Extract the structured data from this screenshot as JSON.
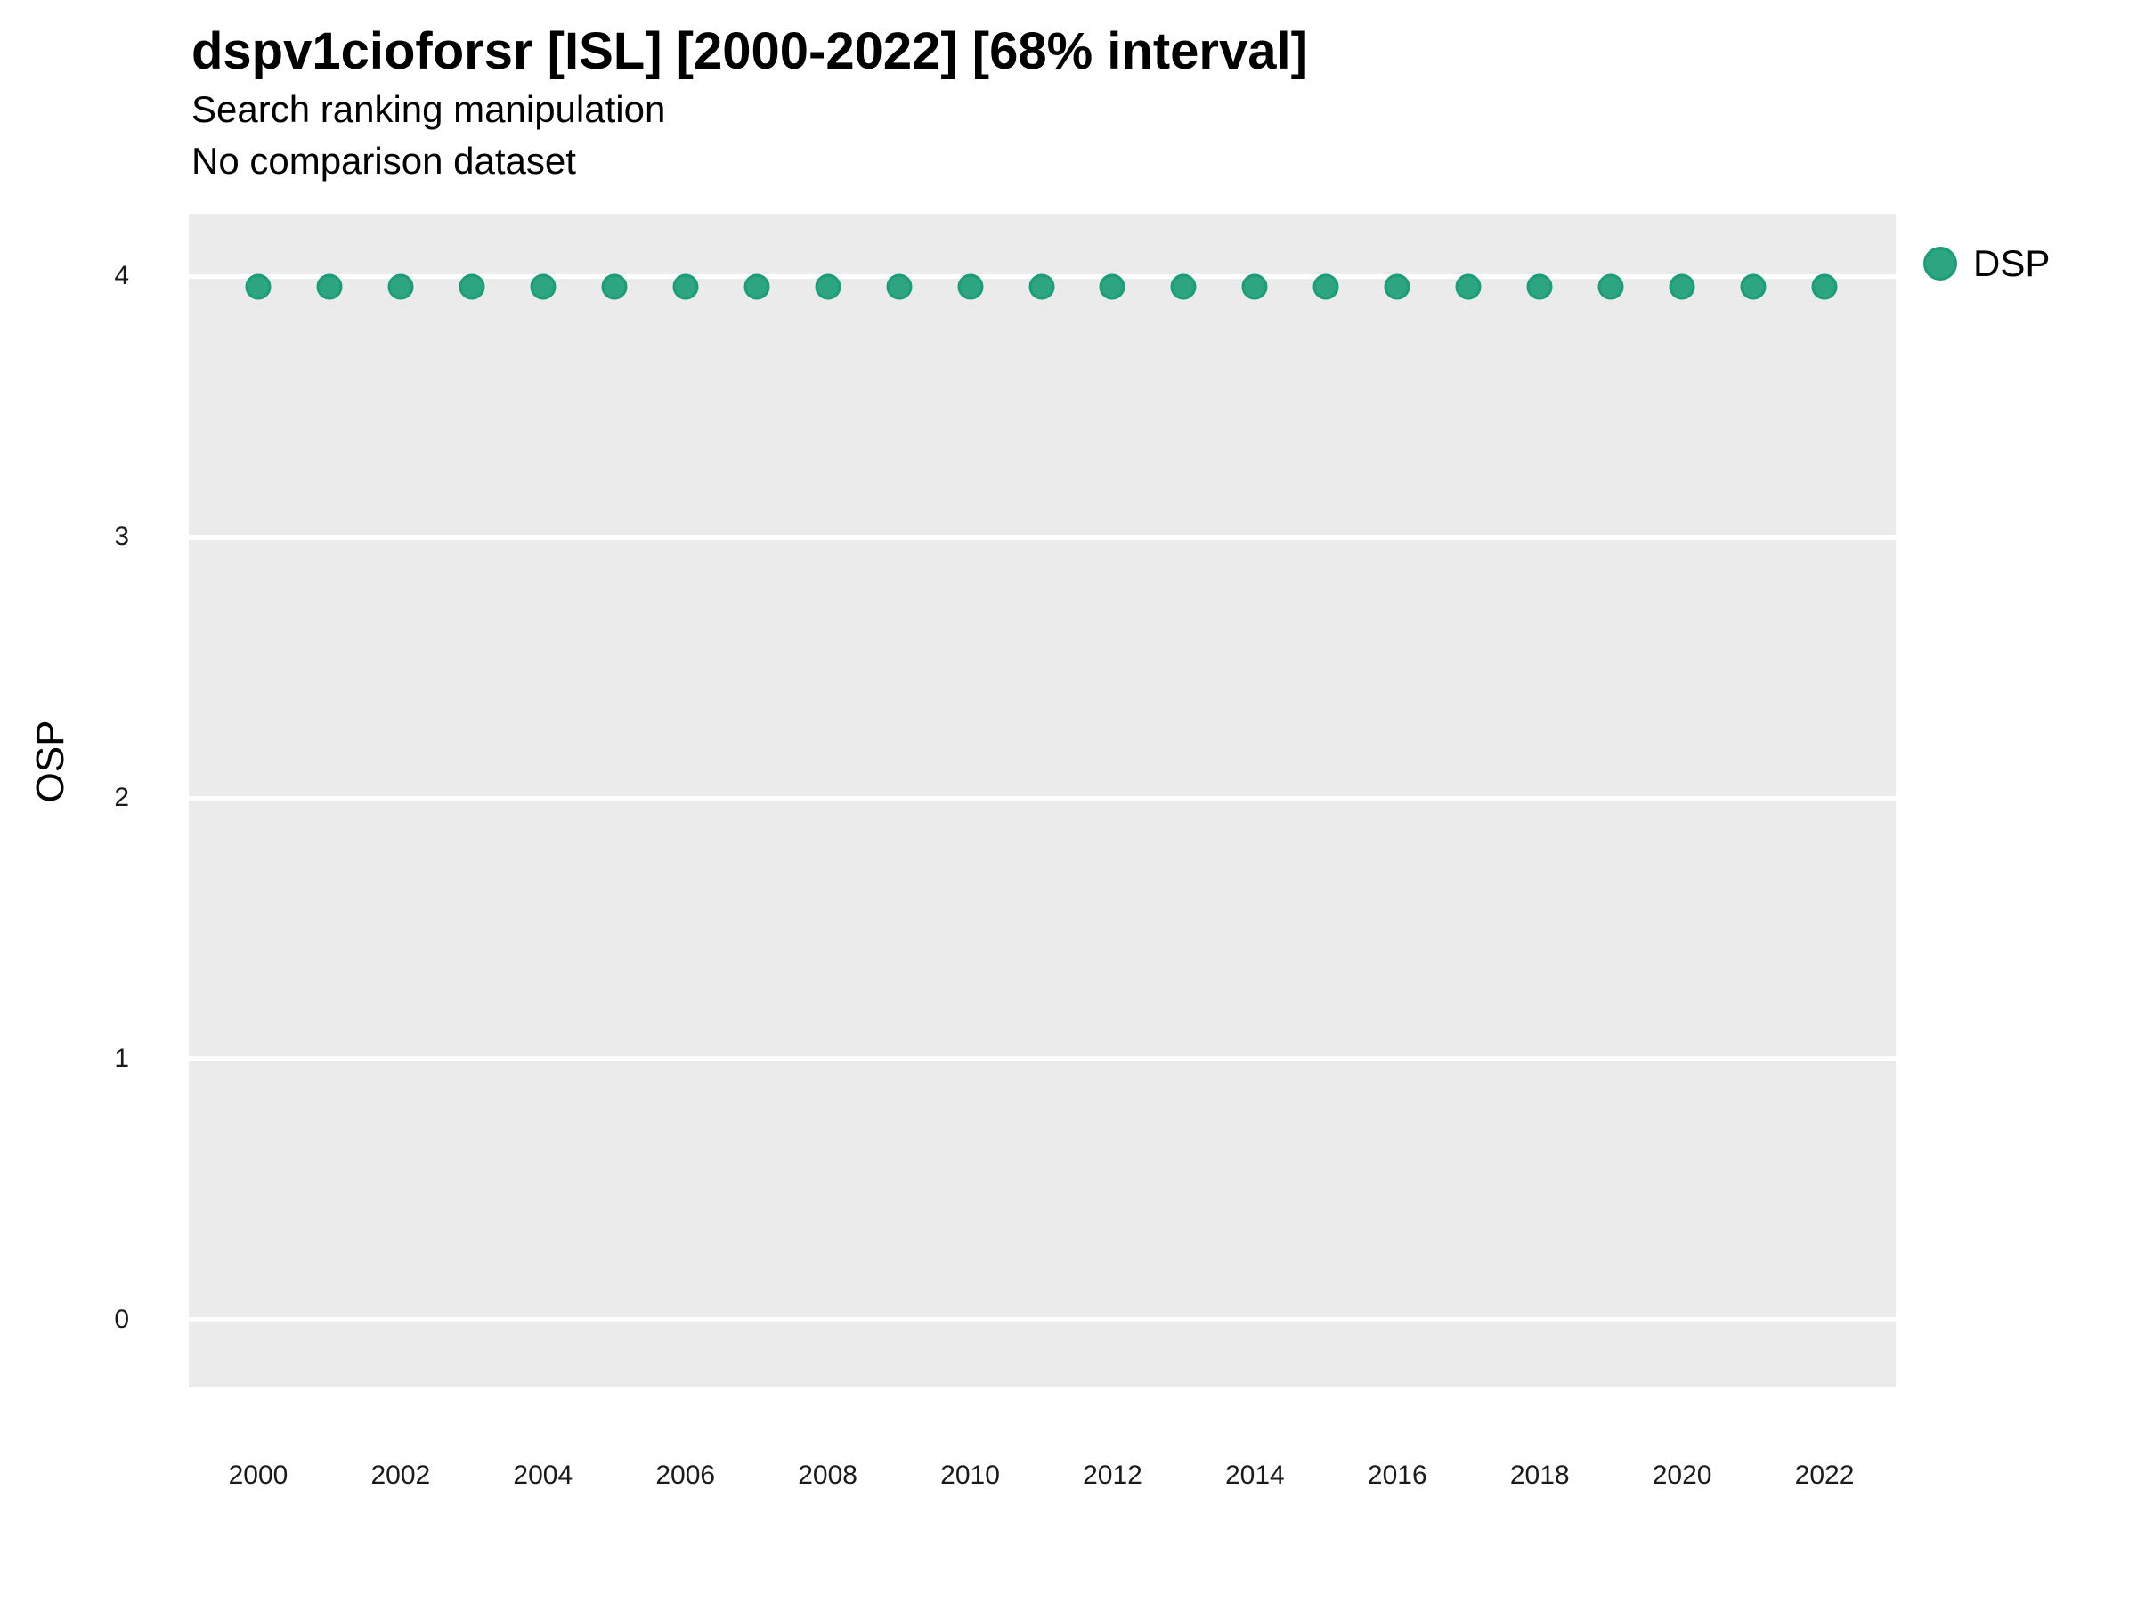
{
  "header": {
    "title": "dspv1cioforsr [ISL] [2000-2022] [68% interval]",
    "subtitle_line1": "Search ranking manipulation",
    "subtitle_line2": "No comparison dataset"
  },
  "legend": {
    "items": [
      {
        "label": "DSP",
        "fill": "#2DA581",
        "stroke": "#1B9E77"
      }
    ],
    "position": "top-right"
  },
  "chart_data": {
    "type": "scatter",
    "title": "dspv1cioforsr [ISL] [2000-2022] [68% interval]",
    "subtitle": [
      "Search ranking manipulation",
      "No comparison dataset"
    ],
    "xlabel": "",
    "ylabel": "OSP",
    "x": [
      2000,
      2001,
      2002,
      2003,
      2004,
      2005,
      2006,
      2007,
      2008,
      2009,
      2010,
      2011,
      2012,
      2013,
      2014,
      2015,
      2016,
      2017,
      2018,
      2019,
      2020,
      2021,
      2022
    ],
    "series": [
      {
        "name": "DSP",
        "values": [
          3.96,
          3.96,
          3.96,
          3.96,
          3.96,
          3.96,
          3.96,
          3.96,
          3.96,
          3.96,
          3.96,
          3.96,
          3.96,
          3.96,
          3.96,
          3.96,
          3.96,
          3.96,
          3.96,
          3.96,
          3.96,
          3.96,
          3.96
        ],
        "marker_fill": "#2DA581",
        "marker_stroke": "#1B9E77"
      }
    ],
    "xticks": [
      2000,
      2002,
      2004,
      2006,
      2008,
      2010,
      2012,
      2014,
      2016,
      2018,
      2020,
      2022
    ],
    "yticks": [
      0,
      1,
      2,
      3,
      4
    ],
    "xlim": [
      1999.025,
      2023.0
    ],
    "ylim": [
      -0.26,
      4.24
    ],
    "grid": "horizontal-major-only",
    "gridline_color": "#FFFFFF",
    "panel_bg": "#EBEBEB",
    "legend_position": "top-right"
  }
}
